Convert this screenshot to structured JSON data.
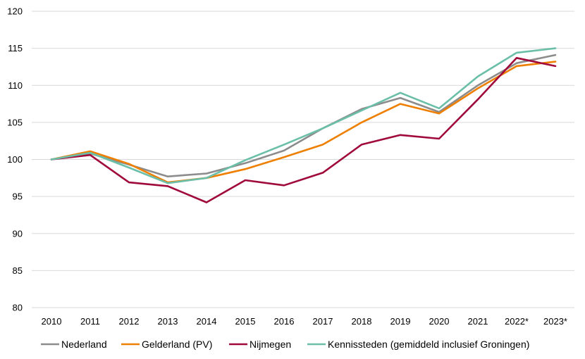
{
  "chart_data": {
    "type": "line",
    "title": "",
    "xlabel": "",
    "ylabel": "",
    "categories": [
      "2010",
      "2011",
      "2012",
      "2013",
      "2014",
      "2015",
      "2016",
      "2017",
      "2018",
      "2019",
      "2020",
      "2021",
      "2022*",
      "2023*"
    ],
    "ylim": [
      80,
      120
    ],
    "yticks": [
      "80",
      "85",
      "90",
      "95",
      "100",
      "105",
      "110",
      "115",
      "120"
    ],
    "grid": "horizontal",
    "legend_position": "bottom",
    "series": [
      {
        "name": "Nederland",
        "color": "#8c8c8c",
        "values": [
          100,
          100.8,
          99.3,
          97.7,
          98.1,
          99.5,
          101.2,
          104.2,
          106.8,
          108.3,
          106.4,
          110.0,
          113.0,
          114.1
        ]
      },
      {
        "name": "Gelderland (PV)",
        "color": "#ee7f00",
        "values": [
          100,
          101.1,
          99.4,
          96.9,
          97.5,
          98.7,
          100.3,
          102.0,
          105.0,
          107.5,
          106.2,
          109.6,
          112.6,
          113.2
        ]
      },
      {
        "name": "Nijmegen",
        "color": "#a00a3a",
        "values": [
          100,
          100.6,
          96.9,
          96.4,
          94.2,
          97.2,
          96.5,
          98.2,
          102.0,
          103.3,
          102.8,
          108.1,
          113.7,
          112.6
        ]
      },
      {
        "name": "Kennissteden (gemiddeld inclusief Groningen)",
        "color": "#6bbfa8",
        "values": [
          100,
          100.9,
          98.9,
          96.8,
          97.5,
          99.9,
          102.0,
          104.2,
          106.6,
          109.0,
          106.9,
          111.2,
          114.4,
          115.0
        ]
      }
    ]
  }
}
